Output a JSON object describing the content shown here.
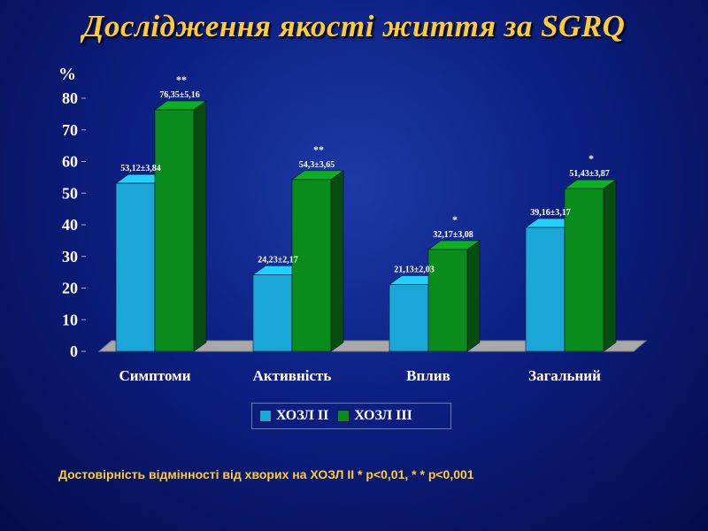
{
  "slide": {
    "title": "Дослідження якості життя за SGRQ",
    "footnote": "Достовірність відмінності від хворих на ХОЗЛ ІІ * р<0,01, * * р<0,001"
  },
  "colors": {
    "series1": "#1aa7d8",
    "series2": "#0a8c1c",
    "title": "#ffcc33"
  },
  "chart_data": {
    "type": "bar",
    "title": "",
    "ylabel": "%",
    "xlabel": "",
    "ylim": [
      0,
      80
    ],
    "yticks": [
      "0",
      "10",
      "20",
      "30",
      "40",
      "50",
      "60",
      "70",
      "80"
    ],
    "categories": [
      "Симптоми",
      "Активність",
      "Вплив",
      "Загальний"
    ],
    "series": [
      {
        "name": "ХОЗЛ ІІ",
        "values": [
          53.12,
          24.23,
          21.13,
          39.16
        ],
        "labels": [
          "53,12±3,84",
          "24,23±2,17",
          "21,13±2,03",
          "39,16±3,17"
        ],
        "significance": [
          "",
          "",
          "",
          ""
        ]
      },
      {
        "name": "ХОЗЛ ІІІ",
        "values": [
          76.35,
          54.3,
          32.17,
          51.43
        ],
        "labels": [
          "76,35±5,16",
          "54,3±3,65",
          "32,17±3,08",
          "51,43±3,87"
        ],
        "significance": [
          "**",
          "**",
          "*",
          "*"
        ]
      }
    ],
    "legend_position": "bottom",
    "grid": false
  }
}
